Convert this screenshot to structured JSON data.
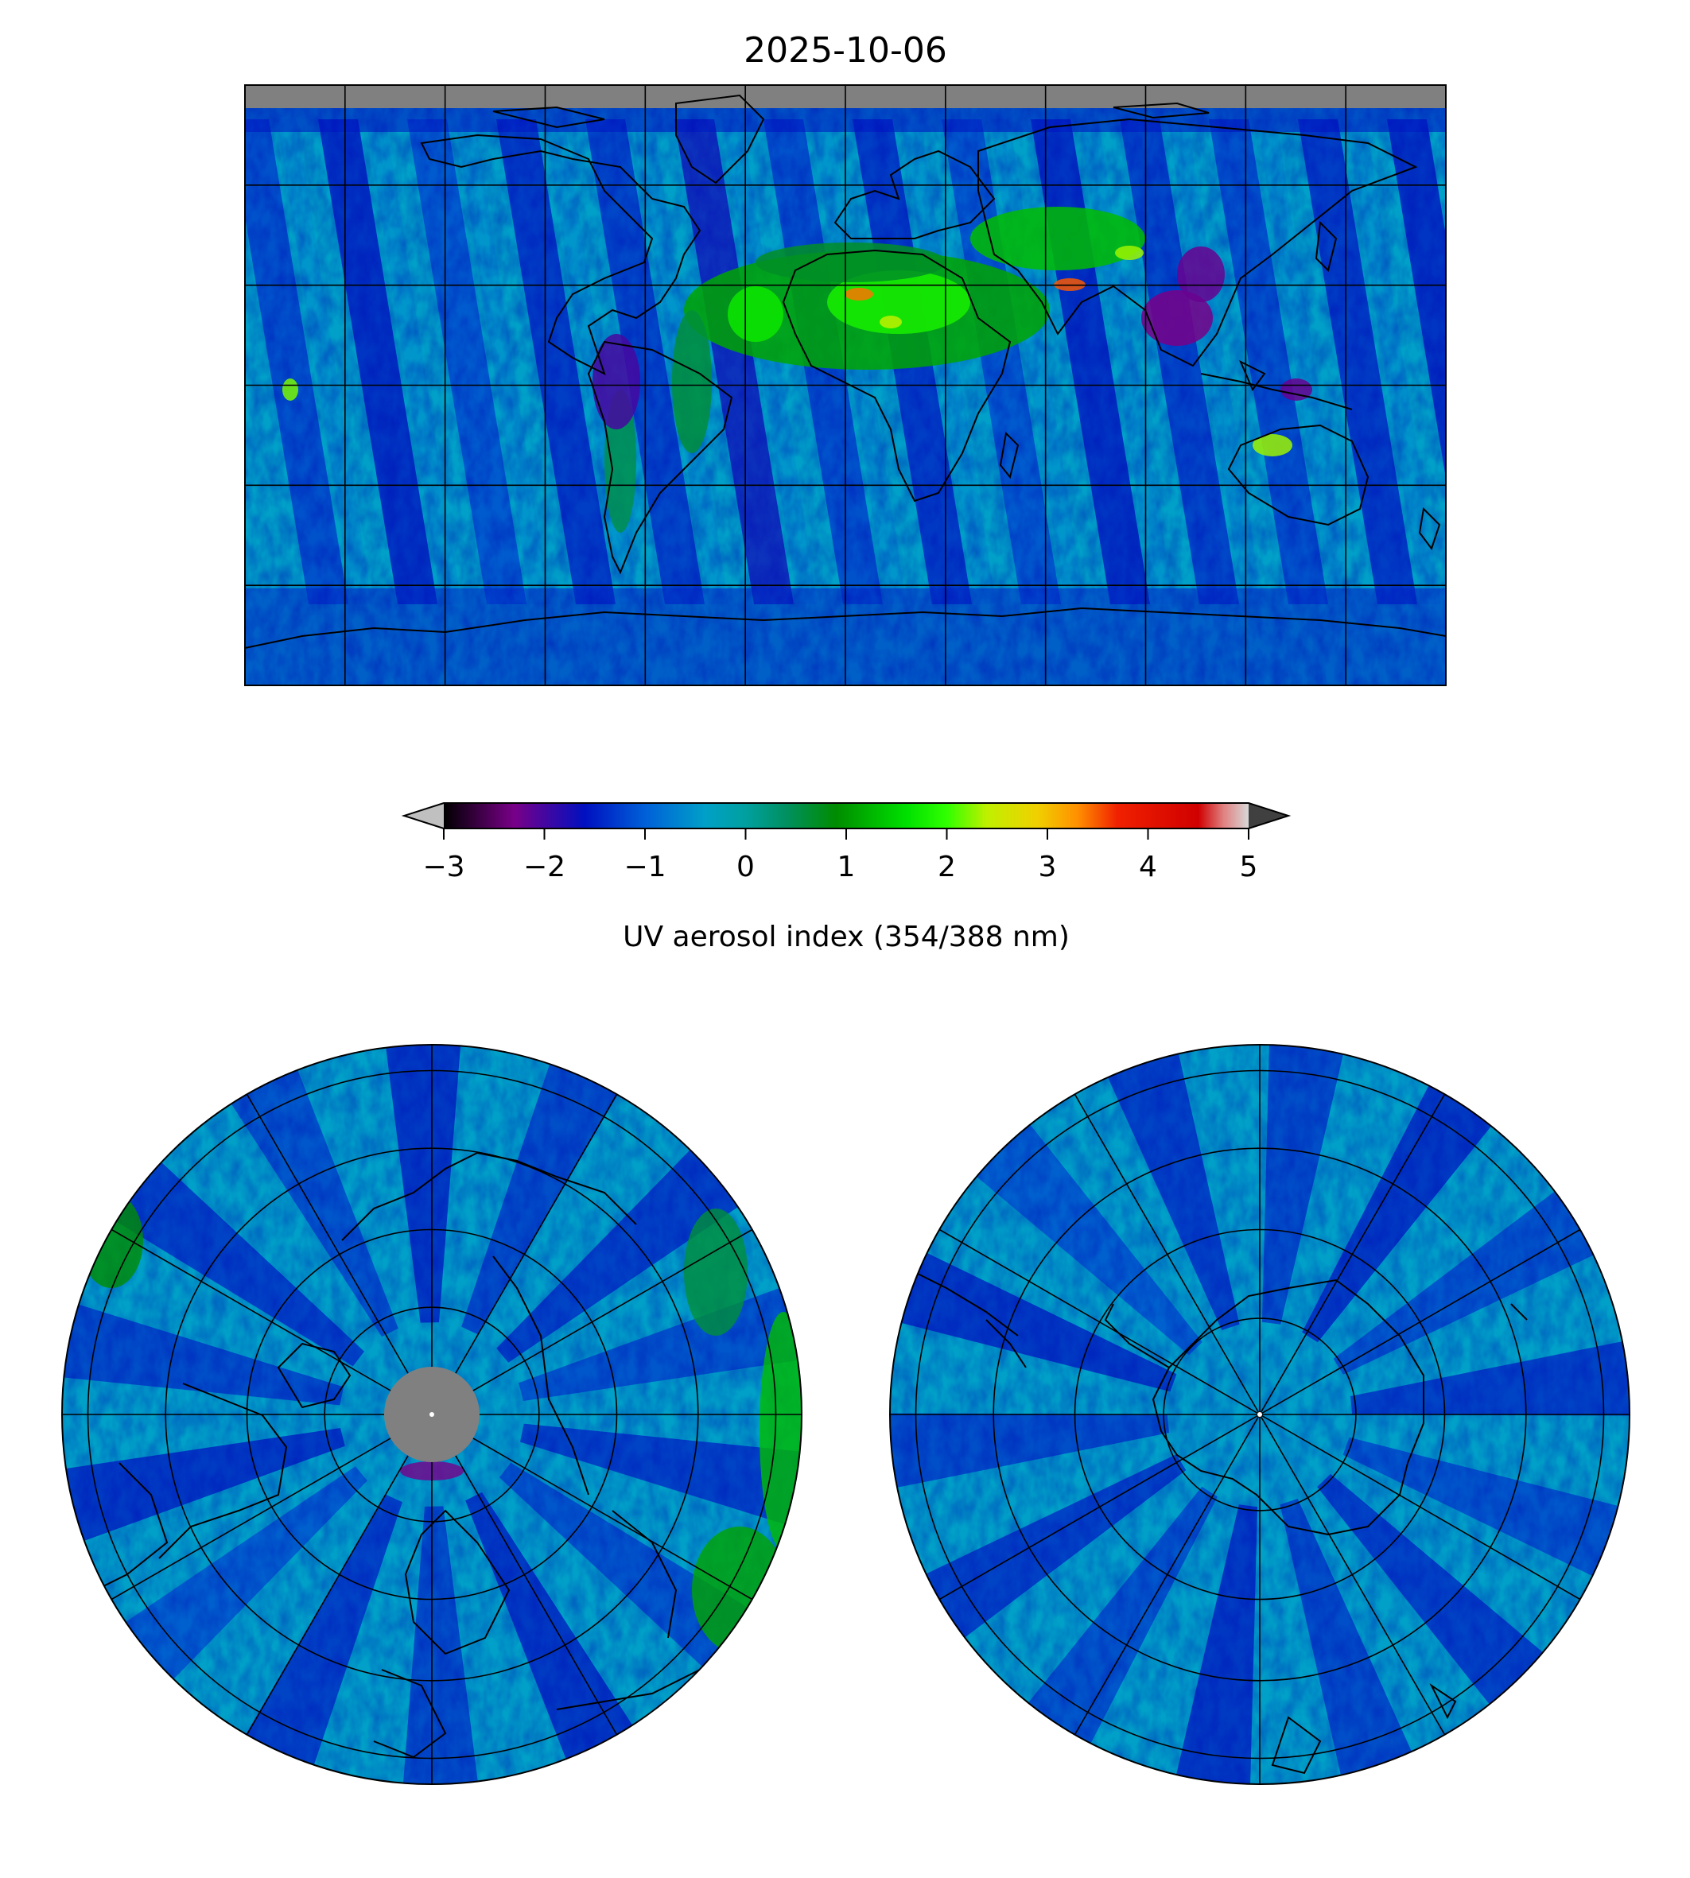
{
  "title": "2025-10-06",
  "colorbar": {
    "label": "UV aerosol index (354/388 nm)",
    "min": -3,
    "max": 5,
    "ticks": [
      -3,
      -2,
      -1,
      0,
      1,
      2,
      3,
      4,
      5
    ],
    "tick_labels": [
      "−3",
      "−2",
      "−1",
      "0",
      "1",
      "2",
      "3",
      "4",
      "5"
    ],
    "extend": "both",
    "under_color": "#c0c0c0",
    "over_color": "#404040",
    "colormap_stops": [
      {
        "value": -3.0,
        "color": "#000000"
      },
      {
        "value": -2.3,
        "color": "#780088"
      },
      {
        "value": -1.6,
        "color": "#0010c0"
      },
      {
        "value": -1.0,
        "color": "#0060d8"
      },
      {
        "value": -0.4,
        "color": "#00a0c8"
      },
      {
        "value": 0.0,
        "color": "#00a0a0"
      },
      {
        "value": 0.4,
        "color": "#009060"
      },
      {
        "value": 0.9,
        "color": "#008c00"
      },
      {
        "value": 1.6,
        "color": "#00e000"
      },
      {
        "value": 2.0,
        "color": "#30ff00"
      },
      {
        "value": 2.4,
        "color": "#c0f000"
      },
      {
        "value": 2.9,
        "color": "#f0d000"
      },
      {
        "value": 3.3,
        "color": "#ff9000"
      },
      {
        "value": 3.7,
        "color": "#f02000"
      },
      {
        "value": 4.5,
        "color": "#d00000"
      },
      {
        "value": 4.75,
        "color": "#e08080"
      },
      {
        "value": 5.0,
        "color": "#d8d8d8"
      }
    ]
  },
  "maps": {
    "global": {
      "projection": "equirectangular",
      "missing_color": "#808080",
      "background_value": -0.3
    },
    "north_pole": {
      "projection": "north polar stereographic",
      "missing_color": "#808080"
    },
    "south_pole": {
      "projection": "south polar stereographic"
    }
  },
  "colors": {
    "coastline": "#000000",
    "gridline": "#000000",
    "frame": "#000000"
  }
}
